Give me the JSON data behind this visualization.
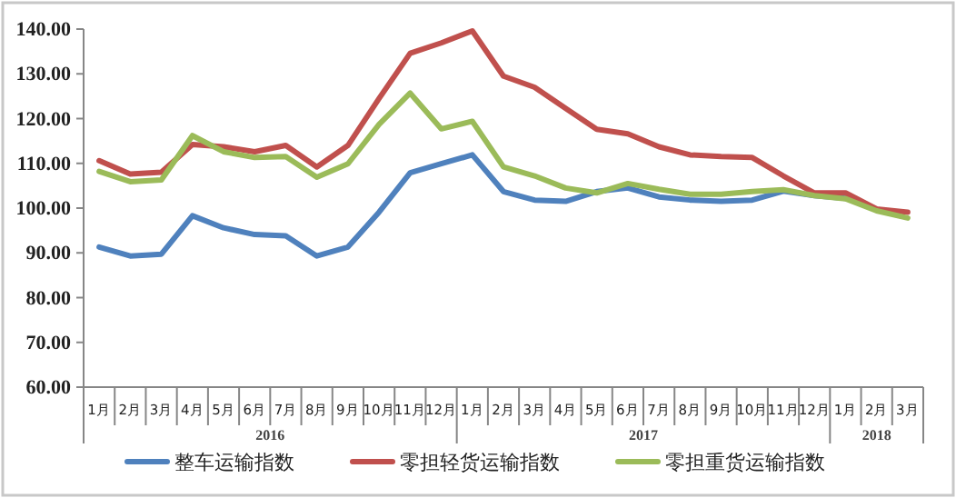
{
  "chart_data": {
    "type": "line",
    "categories": [
      "1月",
      "2月",
      "3月",
      "4月",
      "5月",
      "6月",
      "7月",
      "8月",
      "9月",
      "10月",
      "11月",
      "12月",
      "1月",
      "2月",
      "3月",
      "4月",
      "5月",
      "6月",
      "7月",
      "8月",
      "9月",
      "10月",
      "11月",
      "12月",
      "1月",
      "2月",
      "3月"
    ],
    "series": [
      {
        "name": "整车运输指数",
        "color": "#4f81bd",
        "values": [
          91.3,
          89.3,
          89.7,
          98.3,
          95.6,
          94.1,
          93.8,
          89.3,
          91.3,
          99.1,
          107.9,
          109.9,
          111.9,
          103.7,
          101.8,
          101.5,
          103.7,
          104.5,
          102.5,
          101.8,
          101.5,
          101.8,
          103.8,
          102.8,
          102.2,
          null,
          null
        ]
      },
      {
        "name": "零担轻货运输指数",
        "color": "#c0504d",
        "values": [
          110.6,
          107.6,
          108.0,
          114.2,
          113.7,
          112.6,
          114.0,
          109.2,
          114.0,
          124.5,
          134.6,
          136.9,
          139.6,
          129.5,
          127.0,
          122.3,
          117.6,
          116.6,
          113.7,
          111.9,
          111.5,
          111.3,
          107.2,
          103.4,
          103.4,
          99.8,
          99.1
        ]
      },
      {
        "name": "零担重货运输指数",
        "color": "#9bbb59",
        "values": [
          108.2,
          105.9,
          106.3,
          116.2,
          112.6,
          111.3,
          111.5,
          106.9,
          109.9,
          118.7,
          125.7,
          117.7,
          119.4,
          109.2,
          107.2,
          104.5,
          103.4,
          105.5,
          104.2,
          103.1,
          103.1,
          103.7,
          104.1,
          102.8,
          102.1,
          99.4,
          97.8
        ]
      }
    ],
    "ylim": [
      60,
      140
    ],
    "yticks": [
      {
        "value": 60,
        "label": "60.00"
      },
      {
        "value": 70,
        "label": "70.00"
      },
      {
        "value": 80,
        "label": "80.00"
      },
      {
        "value": 90,
        "label": "90.00"
      },
      {
        "value": 100,
        "label": "100.00"
      },
      {
        "value": 110,
        "label": "110.00"
      },
      {
        "value": 120,
        "label": "120.00"
      },
      {
        "value": 130,
        "label": "130.00"
      },
      {
        "value": 140,
        "label": "140.00"
      }
    ],
    "annotations": [
      "2016",
      "2017",
      "2018"
    ],
    "legend": "bottom",
    "marker": "none",
    "line_style": "solid"
  }
}
